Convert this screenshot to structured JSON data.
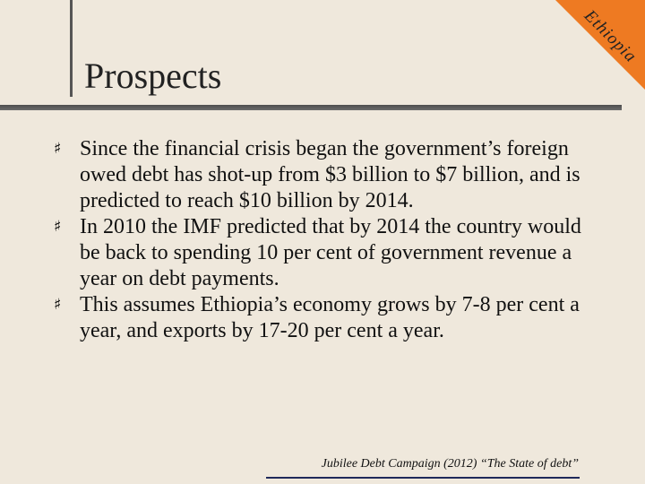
{
  "corner": {
    "label": "Ethiopia",
    "color": "#ee7a22"
  },
  "title": "Prospects",
  "bullets": [
    "Since the financial crisis began the government’s foreign owed debt has shot-up from $3 billion to $7 billion, and is predicted to reach $10 billion by 2014.",
    "In 2010 the IMF predicted that by 2014 the country would be back to spending 10 per cent of government revenue a year on debt payments.",
    "This assumes Ethiopia’s economy grows by 7-8 per cent a year, and exports by 17-20 per cent a year."
  ],
  "bullet_icon": "hash-bullet-icon",
  "citation": "Jubilee Debt Campaign (2012) “The State of debt”"
}
